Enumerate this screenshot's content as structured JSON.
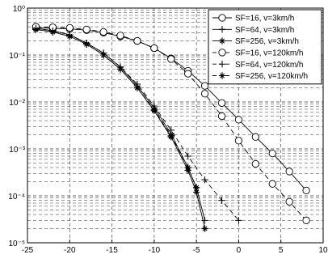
{
  "chart_data": {
    "type": "line",
    "title": "",
    "xlabel": "",
    "ylabel": "",
    "xlim": [
      -25,
      10
    ],
    "ylim": [
      1e-05,
      1
    ],
    "yscale": "log",
    "grid": true,
    "grid_style": "dashed",
    "legend_position": "top-right",
    "x_ticks": [
      -25,
      -20,
      -15,
      -10,
      -5,
      0,
      5,
      10
    ],
    "x_tick_labels": [
      "-25",
      "-20",
      "-15",
      "-10",
      "-5",
      "0",
      "5",
      "10"
    ],
    "y_ticks": [
      1,
      0.1,
      0.01,
      0.001,
      0.0001,
      1e-05
    ],
    "y_tick_labels": [
      "10⁰",
      "10⁻¹",
      "10⁻²",
      "10⁻³",
      "10⁻⁴",
      "10⁻⁵"
    ],
    "series": [
      {
        "name": "SF=16, v=3km/h",
        "marker": "circle",
        "line": "solid",
        "x": [
          -24,
          -22,
          -20,
          -18,
          -16,
          -14,
          -12,
          -10,
          -8,
          -6,
          -4,
          -2,
          0,
          2,
          4,
          6,
          8
        ],
        "y": [
          0.38,
          0.37,
          0.36,
          0.34,
          0.3,
          0.25,
          0.2,
          0.14,
          0.085,
          0.046,
          0.022,
          0.0095,
          0.0042,
          0.0018,
          0.0008,
          0.00033,
          0.00013
        ]
      },
      {
        "name": "SF=64, v=3km/h",
        "marker": "plus",
        "line": "solid",
        "x": [
          -24,
          -22,
          -20,
          -18,
          -16,
          -14,
          -12,
          -10,
          -8,
          -6,
          -5,
          -4
        ],
        "y": [
          0.37,
          0.33,
          0.27,
          0.18,
          0.11,
          0.055,
          0.022,
          0.0075,
          0.0021,
          0.0004,
          0.00015,
          3e-05
        ]
      },
      {
        "name": "SF=256, v=3km/h",
        "marker": "star",
        "line": "solid",
        "x": [
          -24,
          -22,
          -20,
          -18,
          -16,
          -14,
          -12,
          -10,
          -8,
          -6,
          -5,
          -4
        ],
        "y": [
          0.35,
          0.31,
          0.25,
          0.17,
          0.1,
          0.05,
          0.02,
          0.0065,
          0.0018,
          0.00035,
          0.00012,
          2e-05
        ]
      },
      {
        "name": "SF=16, v=120km/h",
        "marker": "circle",
        "line": "dashed",
        "x": [
          -24,
          -22,
          -20,
          -18,
          -16,
          -14,
          -12,
          -10,
          -8,
          -6,
          -4,
          -2,
          0,
          2,
          4,
          6,
          8
        ],
        "y": [
          0.4,
          0.39,
          0.38,
          0.35,
          0.31,
          0.26,
          0.2,
          0.14,
          0.082,
          0.04,
          0.015,
          0.005,
          0.0015,
          0.00048,
          0.00018,
          7.5e-05,
          3e-05
        ]
      },
      {
        "name": "SF=64, v=120km/h",
        "marker": "plus",
        "line": "dashed",
        "x": [
          -24,
          -22,
          -20,
          -18,
          -16,
          -14,
          -12,
          -10,
          -8,
          -6,
          -4,
          -2,
          0
        ],
        "y": [
          0.37,
          0.33,
          0.27,
          0.18,
          0.11,
          0.056,
          0.024,
          0.0082,
          0.0025,
          0.0007,
          0.00022,
          8e-05,
          3e-05
        ]
      },
      {
        "name": "SF=256, v=120km/h",
        "marker": "star",
        "line": "dashed",
        "x": [
          -24,
          -22,
          -20,
          -18,
          -16,
          -14,
          -12,
          -10,
          -8,
          -6,
          -5
        ],
        "y": [
          0.35,
          0.31,
          0.25,
          0.17,
          0.1,
          0.05,
          0.02,
          0.0068,
          0.0019,
          0.0004,
          0.00015
        ]
      }
    ]
  }
}
